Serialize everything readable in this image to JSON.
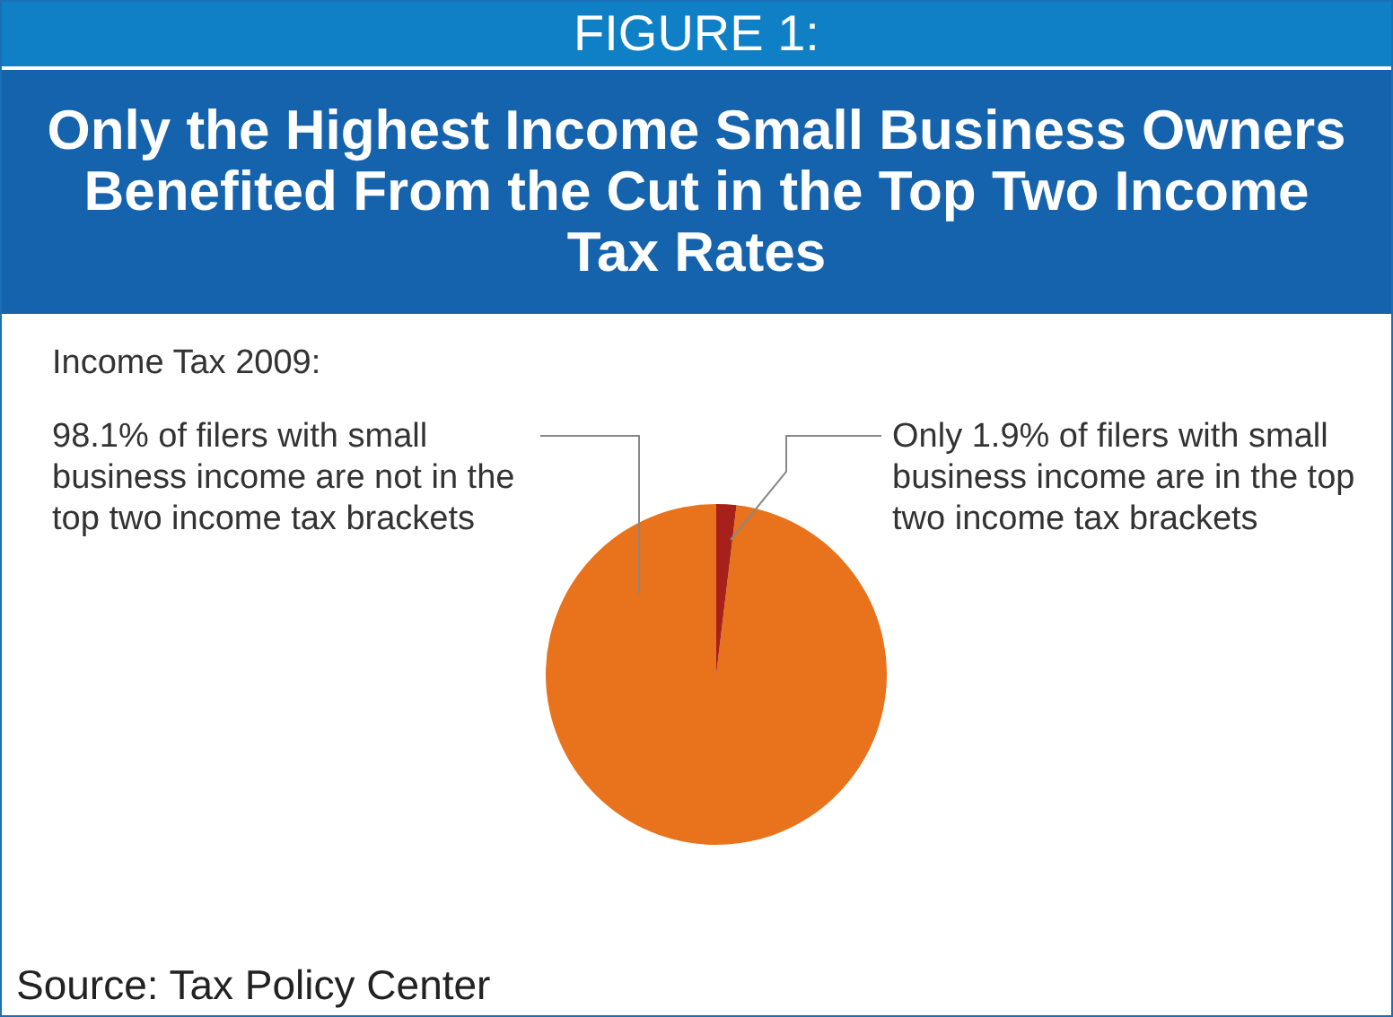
{
  "chart_data": {
    "type": "pie",
    "title": "Only the Highest Income Small Business Owners Benefited From the Cut in the Top Two Income Tax Rates",
    "subtitle": "Income Tax 2009:",
    "categories": [
      "98.1% of filers with small business income are not in the top two income tax brackets",
      "Only 1.9% of filers with small business income are in the top two income tax brackets"
    ],
    "values": [
      98.1,
      1.9
    ],
    "colors": [
      "#e8731c",
      "#a8201a"
    ],
    "legend": false,
    "annotations": [
      "FIGURE 1:",
      "Source: Tax Policy Center"
    ]
  }
}
